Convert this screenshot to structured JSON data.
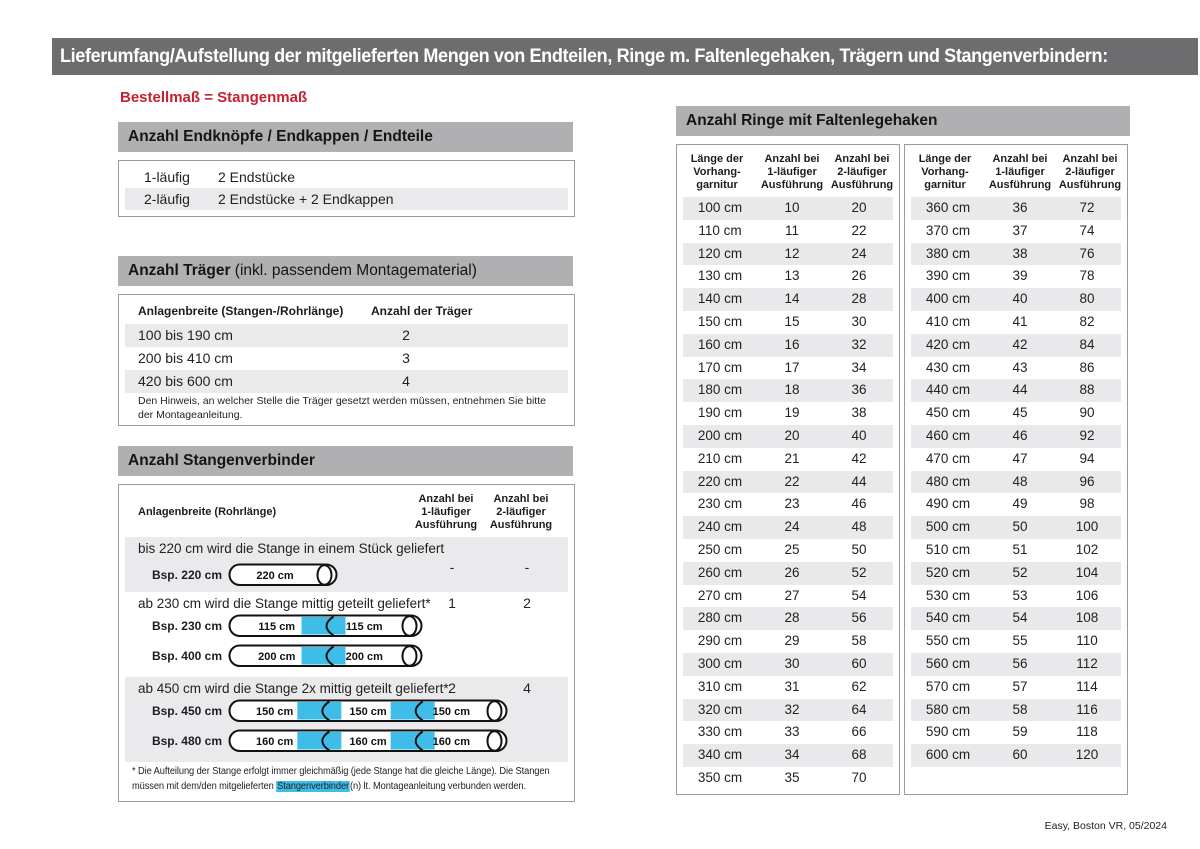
{
  "page": {
    "title": "Lieferumfang/Aufstellung der mitgelieferten Mengen von Endteilen, Ringe m. Faltenlegehaken, Trägern und Stangenverbindern:",
    "footer": "Easy, Boston VR, 05/2024",
    "colors": {
      "accent_red": "#c52130",
      "highlight_blue": "#3fbde9",
      "section_header_gray": "#b0b0b2",
      "title_bar_gray": "#6d6d6f",
      "stripe_gray": "#eaeaec"
    }
  },
  "subtitle": "Bestellmaß = Stangenmaß",
  "endpieces": {
    "title": "Anzahl Endknöpfe / Endkappen / Endteile",
    "rows": [
      {
        "label": "1-läufig",
        "value": "2 Endstücke"
      },
      {
        "label": "2-läufig",
        "value": "2 Endstücke + 2 Endkappen"
      }
    ]
  },
  "traeger": {
    "title_bold": "Anzahl Träger",
    "title_normal": " (inkl. passendem Montagematerial)",
    "col1": "Anlagenbreite (Stangen-/Rohrlänge)",
    "col2": "Anzahl der Träger",
    "rows": [
      {
        "range": "100 bis 190 cm",
        "count": "2"
      },
      {
        "range": "200 bis 410 cm",
        "count": "3"
      },
      {
        "range": "420 bis 600 cm",
        "count": "4"
      }
    ],
    "note": "Den Hinweis, an welcher Stelle die Träger gesetzt werden müssen, entnehmen Sie bitte\nder Montageanleitung."
  },
  "verbinder": {
    "title": "Anzahl Stangenverbinder",
    "col1": "Anlagenbreite (Rohrlänge)",
    "col2": "Anzahl bei\n1-läufiger\nAusführung",
    "col3": "Anzahl bei\n2-läufiger\nAusführung",
    "rows": [
      {
        "text": "bis 220 cm wird die Stange in einem Stück geliefert",
        "v1": "-",
        "v2": "-",
        "examples": [
          {
            "label": "Bsp. 220 cm",
            "segments": [
              "220 cm"
            ]
          }
        ]
      },
      {
        "text": "ab 230 cm wird die Stange mittig geteilt geliefert*",
        "v1": "1",
        "v2": "2",
        "examples": [
          {
            "label": "Bsp. 230 cm",
            "segments": [
              "115 cm",
              "115 cm"
            ]
          },
          {
            "label": "Bsp. 400 cm",
            "segments": [
              "200 cm",
              "200 cm"
            ]
          }
        ]
      },
      {
        "text": "ab 450 cm wird die Stange 2x mittig geteilt geliefert*",
        "v1": "2",
        "v2": "4",
        "examples": [
          {
            "label": "Bsp. 450 cm",
            "segments": [
              "150 cm",
              "150 cm",
              "150 cm"
            ]
          },
          {
            "label": "Bsp. 480 cm",
            "segments": [
              "160 cm",
              "160 cm",
              "160 cm"
            ]
          }
        ]
      }
    ],
    "footnote": {
      "line1": "* Die Aufteilung der Stange erfolgt immer gleichmäßig (jede Stange hat die gleiche Länge). Die Stangen",
      "line2_pre": "müssen mit dem/den mitgelieferten ",
      "highlight": "Stangenverbinder",
      "line2_post": "(n) lt. Montageanleitung verbunden werden."
    }
  },
  "rings": {
    "title": "Anzahl Ringe mit Faltenlegehaken",
    "col_headers": [
      "Länge der\nVorhang-\ngarnitur",
      "Anzahl bei\n1-läufiger\nAusführung",
      "Anzahl bei\n2-läufiger\nAusführung"
    ],
    "table1_rows": [
      [
        "100 cm",
        "10",
        "20"
      ],
      [
        "110 cm",
        "11",
        "22"
      ],
      [
        "120 cm",
        "12",
        "24"
      ],
      [
        "130 cm",
        "13",
        "26"
      ],
      [
        "140 cm",
        "14",
        "28"
      ],
      [
        "150 cm",
        "15",
        "30"
      ],
      [
        "160 cm",
        "16",
        "32"
      ],
      [
        "170 cm",
        "17",
        "34"
      ],
      [
        "180 cm",
        "18",
        "36"
      ],
      [
        "190 cm",
        "19",
        "38"
      ],
      [
        "200 cm",
        "20",
        "40"
      ],
      [
        "210 cm",
        "21",
        "42"
      ],
      [
        "220 cm",
        "22",
        "44"
      ],
      [
        "230 cm",
        "23",
        "46"
      ],
      [
        "240 cm",
        "24",
        "48"
      ],
      [
        "250 cm",
        "25",
        "50"
      ],
      [
        "260 cm",
        "26",
        "52"
      ],
      [
        "270 cm",
        "27",
        "54"
      ],
      [
        "280 cm",
        "28",
        "56"
      ],
      [
        "290 cm",
        "29",
        "58"
      ],
      [
        "300 cm",
        "30",
        "60"
      ],
      [
        "310 cm",
        "31",
        "62"
      ],
      [
        "320 cm",
        "32",
        "64"
      ],
      [
        "330 cm",
        "33",
        "66"
      ],
      [
        "340 cm",
        "34",
        "68"
      ],
      [
        "350 cm",
        "35",
        "70"
      ]
    ],
    "table2_rows": [
      [
        "360 cm",
        "36",
        "72"
      ],
      [
        "370 cm",
        "37",
        "74"
      ],
      [
        "380 cm",
        "38",
        "76"
      ],
      [
        "390 cm",
        "39",
        "78"
      ],
      [
        "400 cm",
        "40",
        "80"
      ],
      [
        "410 cm",
        "41",
        "82"
      ],
      [
        "420 cm",
        "42",
        "84"
      ],
      [
        "430 cm",
        "43",
        "86"
      ],
      [
        "440 cm",
        "44",
        "88"
      ],
      [
        "450 cm",
        "45",
        "90"
      ],
      [
        "460 cm",
        "46",
        "92"
      ],
      [
        "470 cm",
        "47",
        "94"
      ],
      [
        "480 cm",
        "48",
        "96"
      ],
      [
        "490 cm",
        "49",
        "98"
      ],
      [
        "500 cm",
        "50",
        "100"
      ],
      [
        "510 cm",
        "51",
        "102"
      ],
      [
        "520 cm",
        "52",
        "104"
      ],
      [
        "530 cm",
        "53",
        "106"
      ],
      [
        "540 cm",
        "54",
        "108"
      ],
      [
        "550 cm",
        "55",
        "110"
      ],
      [
        "560 cm",
        "56",
        "112"
      ],
      [
        "570 cm",
        "57",
        "114"
      ],
      [
        "580 cm",
        "58",
        "116"
      ],
      [
        "590 cm",
        "59",
        "118"
      ],
      [
        "600 cm",
        "60",
        "120"
      ]
    ]
  }
}
